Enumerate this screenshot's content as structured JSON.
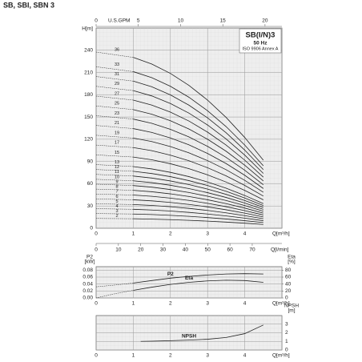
{
  "header": "SB, SBI, SBN 3",
  "chart_data": [
    {
      "type": "line",
      "badge": [
        "SB(I/N)3",
        "50 Hz",
        "ISO 9906 Annex A"
      ],
      "ylabel": "H[m]",
      "xlabel": "Q[m³/h]",
      "xlim": [
        0,
        5
      ],
      "xticks": [
        0,
        1,
        2,
        3,
        4
      ],
      "ylim": [
        0,
        270
      ],
      "yticks": [
        0,
        30,
        60,
        90,
        120,
        150,
        180,
        210,
        240
      ],
      "top_axis": {
        "label": "U.S.GPM",
        "lim": [
          0,
          22
        ],
        "ticks": [
          0,
          5,
          10,
          15,
          20
        ]
      },
      "bottom_axis": {
        "label": "Q[l/min]",
        "lim": [
          0,
          83.3
        ],
        "ticks": [
          0,
          10,
          20,
          30,
          40,
          50,
          60,
          70
        ]
      },
      "grid": true,
      "dashed_below": 1,
      "x": [
        0,
        1,
        1.5,
        2,
        2.5,
        3,
        3.5,
        4,
        4.5
      ],
      "series": [
        {
          "name": "36",
          "color": "#222222",
          "values": [
            237.6,
            230.4,
            221.4,
            208.8,
            192.6,
            172.8,
            149.4,
            122.4,
            91.8
          ]
        },
        {
          "name": "33",
          "color": "#222222",
          "values": [
            217.8,
            211.2,
            203,
            191.4,
            176.6,
            158.4,
            137,
            112.2,
            84.2
          ]
        },
        {
          "name": "31",
          "color": "#222222",
          "values": [
            204.6,
            198.4,
            190.7,
            179.8,
            165.9,
            148.8,
            128.7,
            105.4,
            79.1
          ]
        },
        {
          "name": "29",
          "color": "#222222",
          "values": [
            191.4,
            185.6,
            178.4,
            168.2,
            155.2,
            139.2,
            120.4,
            98.6,
            74
          ]
        },
        {
          "name": "27",
          "color": "#222222",
          "values": [
            178.2,
            172.8,
            166.1,
            156.6,
            144.5,
            129.6,
            112.1,
            91.8,
            68.9
          ]
        },
        {
          "name": "25",
          "color": "#222222",
          "values": [
            165,
            160,
            153.8,
            145,
            133.8,
            120,
            103.8,
            85,
            63.8
          ]
        },
        {
          "name": "23",
          "color": "#222222",
          "values": [
            151.8,
            147.2,
            141.5,
            133.4,
            123.1,
            110.4,
            95.5,
            78.2,
            58.7
          ]
        },
        {
          "name": "21",
          "color": "#222222",
          "values": [
            138.6,
            134.4,
            129.2,
            121.8,
            112.4,
            100.8,
            87.2,
            71.4,
            53.6
          ]
        },
        {
          "name": "19",
          "color": "#222222",
          "values": [
            125.4,
            121.6,
            116.9,
            110.2,
            101.7,
            91.2,
            78.9,
            64.6,
            48.5
          ]
        },
        {
          "name": "17",
          "color": "#222222",
          "values": [
            112.2,
            108.8,
            104.6,
            98.6,
            91,
            81.6,
            70.6,
            57.8,
            43.4
          ]
        },
        {
          "name": "15",
          "color": "#222222",
          "values": [
            99,
            96,
            92.3,
            87,
            80.3,
            72,
            62.3,
            51,
            38.3
          ]
        },
        {
          "name": "13",
          "color": "#222222",
          "values": [
            85.8,
            83.2,
            80,
            75.4,
            69.6,
            62.4,
            54,
            44.2,
            33.2
          ]
        },
        {
          "name": "12",
          "color": "#222222",
          "values": [
            79.2,
            76.8,
            73.8,
            69.6,
            64.2,
            57.6,
            49.8,
            40.8,
            30.6
          ]
        },
        {
          "name": "11",
          "color": "#222222",
          "values": [
            72.6,
            70.4,
            67.7,
            63.8,
            58.9,
            52.8,
            45.7,
            37.4,
            28.1
          ]
        },
        {
          "name": "10",
          "color": "#222222",
          "values": [
            66,
            64,
            61.5,
            58,
            53.5,
            48,
            41.5,
            34,
            25.5
          ]
        },
        {
          "name": "9",
          "color": "#222222",
          "values": [
            59.4,
            57.6,
            55.4,
            52.2,
            48.2,
            43.2,
            37.4,
            30.6,
            23
          ]
        },
        {
          "name": "8",
          "color": "#222222",
          "values": [
            52.8,
            51.2,
            49.2,
            46.4,
            42.8,
            38.4,
            33.2,
            27.2,
            20.4
          ]
        },
        {
          "name": "7",
          "color": "#222222",
          "values": [
            46.2,
            44.8,
            43.1,
            40.6,
            37.5,
            33.6,
            29.1,
            23.8,
            17.9
          ]
        },
        {
          "name": "6",
          "color": "#222222",
          "values": [
            39.6,
            38.4,
            36.9,
            34.8,
            32.1,
            28.8,
            24.9,
            20.4,
            15.3
          ]
        },
        {
          "name": "5",
          "color": "#222222",
          "values": [
            33,
            32,
            30.8,
            29,
            26.8,
            24,
            20.8,
            17,
            12.8
          ]
        },
        {
          "name": "4",
          "color": "#222222",
          "values": [
            26.4,
            25.6,
            24.6,
            23.2,
            21.4,
            19.2,
            16.6,
            13.6,
            10.2
          ]
        },
        {
          "name": "3",
          "color": "#222222",
          "values": [
            19.8,
            19.2,
            18.5,
            17.4,
            16.1,
            14.4,
            12.5,
            10.2,
            7.7
          ]
        },
        {
          "name": "2",
          "color": "#222222",
          "values": [
            13.2,
            12.8,
            12.3,
            11.6,
            10.7,
            9.6,
            8.3,
            6.8,
            5.1
          ]
        }
      ]
    },
    {
      "type": "line",
      "ylabel": [
        "P2",
        "[kW]"
      ],
      "y2label": [
        "Eta",
        "[%]"
      ],
      "xlabel": "Q[m³/h]",
      "xlim": [
        0,
        5
      ],
      "xticks": [
        0,
        1,
        2,
        3,
        4
      ],
      "ylim": [
        0,
        0.09
      ],
      "yticks": [
        {
          "value": 0,
          "label": "0.00"
        },
        0.02,
        0.04,
        0.06,
        0.08
      ],
      "y2lim": [
        0,
        90
      ],
      "y2ticks": [
        0,
        20,
        40,
        60,
        80
      ],
      "grid": true,
      "dashed_below": 1,
      "x": [
        0,
        0.5,
        1,
        1.5,
        2,
        2.5,
        3,
        3.5,
        4,
        4.5
      ],
      "series": [
        {
          "name": "P2",
          "color": "#222222",
          "values": [
            0.032,
            0.037,
            0.043,
            0.05,
            0.057,
            0.062,
            0.066,
            0.069,
            0.07,
            0.069
          ]
        },
        {
          "name": "Eta",
          "color": "#222222",
          "axis": "y2",
          "values": [
            0,
            12,
            22,
            31,
            39,
            45,
            49,
            51,
            50,
            45
          ]
        }
      ]
    },
    {
      "type": "line",
      "ylabel": [
        "NPSH",
        "[m]"
      ],
      "xlabel": "Q[m³/h]",
      "y_side": "right",
      "xlim": [
        0,
        5
      ],
      "xticks": [
        0,
        1,
        2,
        3,
        4
      ],
      "ylim": [
        0,
        4
      ],
      "yticks": [
        0,
        1,
        2,
        3
      ],
      "grid": true,
      "x": [
        1.2,
        1.5,
        2,
        2.5,
        3,
        3.5,
        4,
        4.5
      ],
      "series": [
        {
          "name": "NPSH",
          "color": "#222222",
          "values": [
            1.0,
            1.02,
            1.08,
            1.15,
            1.25,
            1.45,
            1.9,
            2.9
          ]
        }
      ]
    }
  ]
}
